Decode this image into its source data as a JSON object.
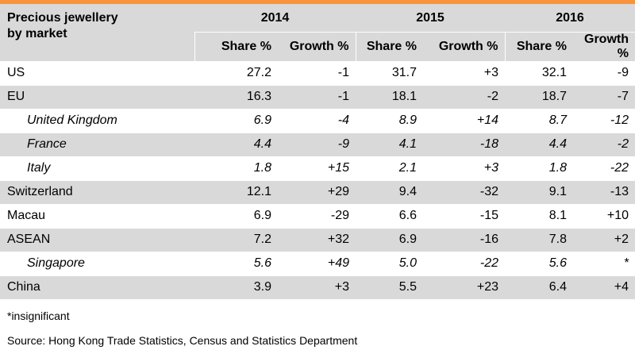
{
  "colors": {
    "accent": "#f7943d",
    "shade": "#d9d9d9"
  },
  "header": {
    "market_label_line1": "Precious jewellery",
    "market_label_line2": "by market",
    "years": [
      "2014",
      "2015",
      "2016"
    ],
    "share_label": "Share %",
    "growth_label": "Growth %"
  },
  "rows": [
    {
      "market": "US",
      "s2014": "27.2",
      "g2014": "-1",
      "s2015": "31.7",
      "g2015": "+3",
      "s2016": "32.1",
      "g2016": "-9"
    },
    {
      "market": "EU",
      "s2014": "16.3",
      "g2014": "-1",
      "s2015": "18.1",
      "g2015": "-2",
      "s2016": "18.7",
      "g2016": "-7"
    },
    {
      "market": "United Kingdom",
      "s2014": "6.9",
      "g2014": "-4",
      "s2015": "8.9",
      "g2015": "+14",
      "s2016": "8.7",
      "g2016": "-12"
    },
    {
      "market": "France",
      "s2014": "4.4",
      "g2014": "-9",
      "s2015": "4.1",
      "g2015": "-18",
      "s2016": "4.4",
      "g2016": "-2"
    },
    {
      "market": "Italy",
      "s2014": "1.8",
      "g2014": "+15",
      "s2015": "2.1",
      "g2015": "+3",
      "s2016": "1.8",
      "g2016": "-22"
    },
    {
      "market": "Switzerland",
      "s2014": "12.1",
      "g2014": "+29",
      "s2015": "9.4",
      "g2015": "-32",
      "s2016": "9.1",
      "g2016": "-13"
    },
    {
      "market": "Macau",
      "s2014": "6.9",
      "g2014": "-29",
      "s2015": "6.6",
      "g2015": "-15",
      "s2016": "8.1",
      "g2016": "+10"
    },
    {
      "market": "ASEAN",
      "s2014": "7.2",
      "g2014": "+32",
      "s2015": "6.9",
      "g2015": "-16",
      "s2016": "7.8",
      "g2016": "+2"
    },
    {
      "market": "Singapore",
      "s2014": "5.6",
      "g2014": "+49",
      "s2015": "5.0",
      "g2015": "-22",
      "s2016": "5.6",
      "g2016": "*"
    },
    {
      "market": "China",
      "s2014": "3.9",
      "g2014": "+3",
      "s2015": "5.5",
      "g2015": "+23",
      "s2016": "6.4",
      "g2016": "+4"
    }
  ],
  "footnote": "*insignificant",
  "source": "Source: Hong Kong Trade Statistics, Census and Statistics Department"
}
